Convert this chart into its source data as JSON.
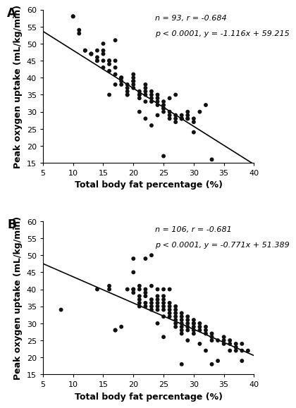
{
  "panel_A": {
    "label": "A",
    "annotation_line1": "n = 93, r = -0.684",
    "annotation_line2": "p < 0.0001, y = -1.116x + 59.215",
    "slope": -1.116,
    "intercept": 59.215,
    "xlim": [
      5,
      40
    ],
    "ylim": [
      15,
      60
    ],
    "xticks": [
      5,
      10,
      15,
      20,
      25,
      30,
      35,
      40
    ],
    "yticks": [
      15,
      20,
      25,
      30,
      35,
      40,
      45,
      50,
      55,
      60
    ],
    "xlabel": "Total body fat percentage (%)",
    "ylabel": "Peak oxygen uptake (mL/kg/min)",
    "scatter_x": [
      10,
      10,
      11,
      11,
      12,
      12,
      13,
      13,
      13,
      14,
      14,
      14,
      14,
      15,
      15,
      15,
      15,
      15,
      16,
      16,
      16,
      16,
      17,
      17,
      17,
      17,
      18,
      18,
      18,
      18,
      18,
      19,
      19,
      19,
      19,
      19,
      20,
      20,
      20,
      20,
      20,
      20,
      21,
      21,
      21,
      21,
      21,
      22,
      22,
      22,
      22,
      22,
      23,
      23,
      23,
      23,
      23,
      24,
      24,
      24,
      24,
      24,
      25,
      25,
      25,
      25,
      25,
      26,
      26,
      26,
      26,
      27,
      27,
      27,
      27,
      28,
      28,
      28,
      28,
      29,
      29,
      29,
      29,
      30,
      30,
      30,
      31,
      32,
      33,
      25,
      17,
      16,
      22
    ],
    "scatter_y": [
      58,
      58,
      54,
      53,
      48,
      48,
      47,
      47,
      47,
      48,
      46,
      45,
      45,
      50,
      48,
      47,
      43,
      45,
      45,
      45,
      44,
      42,
      45,
      43,
      41,
      38,
      40,
      40,
      40,
      39,
      38,
      38,
      37,
      36,
      35,
      35,
      41,
      40,
      39,
      39,
      38,
      37,
      36,
      35,
      35,
      34,
      30,
      38,
      37,
      36,
      35,
      33,
      36,
      35,
      34,
      33,
      26,
      35,
      34,
      33,
      32,
      29,
      33,
      32,
      31,
      31,
      30,
      34,
      30,
      29,
      28,
      35,
      29,
      28,
      27,
      29,
      28,
      28,
      28,
      30,
      29,
      28,
      28,
      28,
      27,
      24,
      30,
      32,
      16,
      17,
      51,
      35,
      28
    ]
  },
  "panel_B": {
    "label": "B",
    "annotation_line1": "n = 106, r = -0.681",
    "annotation_line2": "p < 0.0001, y = -0.771x + 51.389",
    "slope": -0.771,
    "intercept": 51.389,
    "xlim": [
      5,
      40
    ],
    "ylim": [
      15,
      60
    ],
    "xticks": [
      5,
      10,
      15,
      20,
      25,
      30,
      35,
      40
    ],
    "yticks": [
      15,
      20,
      25,
      30,
      35,
      40,
      45,
      50,
      55,
      60
    ],
    "xlabel": "Total body fat percentage (%)",
    "ylabel": "Peak oxygen uptake (mL/kg/min)",
    "scatter_x": [
      8,
      14,
      16,
      16,
      17,
      17,
      18,
      19,
      20,
      20,
      20,
      20,
      20,
      21,
      21,
      21,
      21,
      21,
      21,
      22,
      22,
      22,
      22,
      22,
      22,
      23,
      23,
      23,
      23,
      23,
      23,
      24,
      24,
      24,
      24,
      24,
      24,
      24,
      25,
      25,
      25,
      25,
      25,
      25,
      25,
      25,
      26,
      26,
      26,
      26,
      26,
      26,
      27,
      27,
      27,
      27,
      27,
      27,
      27,
      28,
      28,
      28,
      28,
      28,
      28,
      28,
      28,
      29,
      29,
      29,
      29,
      29,
      29,
      30,
      30,
      30,
      30,
      30,
      30,
      31,
      31,
      31,
      31,
      32,
      32,
      32,
      32,
      33,
      33,
      33,
      33,
      34,
      34,
      35,
      35,
      35,
      36,
      36,
      36,
      37,
      37,
      37,
      38,
      38,
      38,
      39
    ],
    "scatter_y": [
      34,
      40,
      40,
      41,
      28,
      28,
      29,
      40,
      49,
      45,
      40,
      40,
      39,
      41,
      40,
      38,
      37,
      36,
      35,
      49,
      40,
      39,
      38,
      36,
      35,
      50,
      41,
      37,
      36,
      35,
      34,
      40,
      38,
      37,
      36,
      35,
      34,
      30,
      40,
      38,
      37,
      36,
      35,
      34,
      32,
      26,
      40,
      36,
      34,
      33,
      32,
      35,
      35,
      34,
      33,
      32,
      31,
      30,
      29,
      33,
      32,
      31,
      30,
      29,
      28,
      27,
      18,
      32,
      31,
      30,
      29,
      28,
      25,
      31,
      30,
      29,
      28,
      27,
      30,
      30,
      29,
      28,
      24,
      29,
      28,
      27,
      22,
      27,
      26,
      25,
      18,
      25,
      19,
      26,
      25,
      24,
      25,
      24,
      22,
      24,
      23,
      22,
      24,
      22,
      19,
      22
    ]
  },
  "dot_color": "#111111",
  "line_color": "#000000",
  "dot_size": 18,
  "annotation_fontsize": 8,
  "axis_label_fontsize": 9,
  "tick_fontsize": 8,
  "panel_label_fontsize": 12
}
